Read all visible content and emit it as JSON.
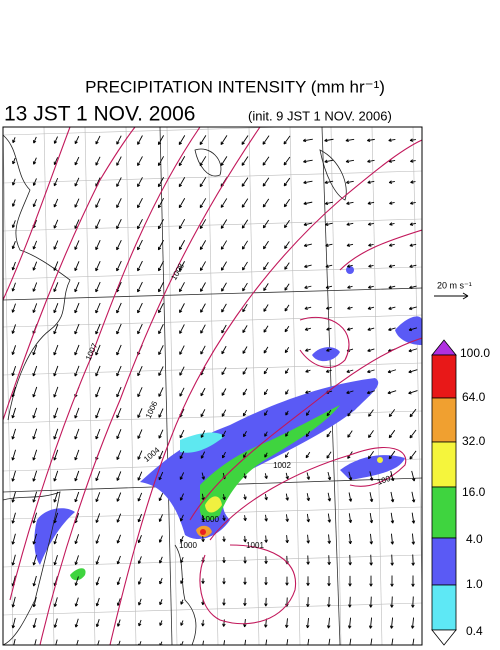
{
  "header": {
    "title": "PRECIPITATION INTENSITY (mm hr⁻¹)",
    "valid_time": "13 JST 1 NOV. 2006",
    "init_time": "(init. 9 JST 1 NOV. 2006)"
  },
  "vector_scale": {
    "label": "20 m s⁻¹"
  },
  "colorbar": {
    "labels": [
      "100.0",
      "64.0",
      "32.0",
      "16.0",
      "4.0",
      "1.0",
      "0.4"
    ]
  },
  "isobar_labels": [
    "1008",
    "1007",
    "1006",
    "1004",
    "1002",
    "1001",
    "1000",
    "1000",
    "1001"
  ]
}
